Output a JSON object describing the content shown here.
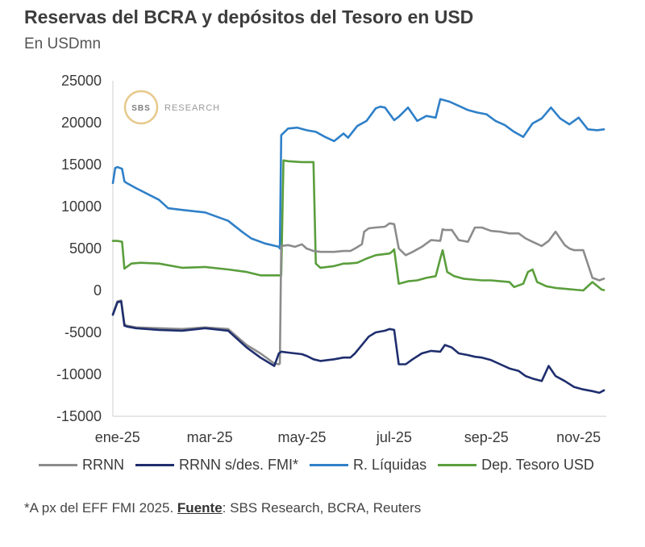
{
  "header": {
    "title": "Reservas del BCRA y depósitos del Tesoro en USD",
    "subtitle": "En USDmn"
  },
  "watermark": {
    "logo_text": "SBS",
    "text": "RESEARCH"
  },
  "footnote": {
    "prefix": "*A px del EFF FMI 2025. ",
    "source_label": "Fuente",
    "source_text": ": SBS Research, BCRA, Reuters"
  },
  "chart_data": {
    "type": "line",
    "title": "Reservas del BCRA y depósitos del Tesoro en USD",
    "ylabel": "En USDmn",
    "xlabel": "",
    "ylim": [
      -15000,
      25000
    ],
    "yticks": [
      25000,
      20000,
      15000,
      10000,
      5000,
      0,
      -5000,
      -10000,
      -15000
    ],
    "ytick_labels": [
      "25000",
      "20000",
      "15000",
      "10000",
      "5000",
      "0",
      "-5000",
      "-10000",
      "-15000"
    ],
    "xlim": [
      0,
      10.7
    ],
    "xticks": [
      0.1,
      2.1,
      4.1,
      6.1,
      8.1,
      10.1
    ],
    "xtick_labels": [
      "ene-25",
      "mar-25",
      "may-25",
      "jul-25",
      "sep-25",
      "nov-25"
    ],
    "x_unit": "months since 2025-01-01",
    "grid": false,
    "legend_position": "bottom",
    "series": [
      {
        "name": "RRNN",
        "color": "#8c8c8c",
        "x": [
          0.0,
          0.1,
          0.18,
          0.25,
          0.3,
          0.5,
          1.0,
          1.5,
          2.0,
          2.5,
          2.9,
          3.2,
          3.5,
          3.6,
          3.62,
          3.65,
          3.8,
          3.95,
          4.1,
          4.2,
          4.35,
          4.5,
          4.8,
          5.0,
          5.15,
          5.25,
          5.4,
          5.45,
          5.55,
          5.7,
          5.9,
          6.0,
          6.1,
          6.2,
          6.35,
          6.5,
          6.7,
          6.9,
          7.1,
          7.15,
          7.2,
          7.35,
          7.5,
          7.7,
          7.85,
          8.0,
          8.2,
          8.4,
          8.6,
          8.8,
          8.95,
          9.1,
          9.3,
          9.45,
          9.6,
          9.8,
          9.9,
          10.0,
          10.2,
          10.4,
          10.55,
          10.65
        ],
        "y": [
          -2800,
          -1300,
          -1200,
          -4000,
          -4200,
          -4400,
          -4500,
          -4600,
          -4400,
          -4600,
          -6500,
          -7500,
          -8700,
          -8800,
          -8700,
          5300,
          5400,
          5200,
          5500,
          5000,
          4700,
          4600,
          4600,
          4700,
          4700,
          5000,
          5500,
          7000,
          7400,
          7500,
          7600,
          8000,
          7900,
          5000,
          4200,
          4600,
          5200,
          6000,
          5900,
          7300,
          7200,
          7200,
          6000,
          5800,
          7500,
          7500,
          7100,
          7000,
          6800,
          6800,
          6200,
          5800,
          5300,
          5900,
          7000,
          5400,
          5000,
          4800,
          4800,
          1500,
          1200,
          1400
        ]
      },
      {
        "name": "RRNN s/des. FMI*",
        "color": "#1f2e6e",
        "x": [
          0.0,
          0.1,
          0.18,
          0.25,
          0.3,
          0.5,
          1.0,
          1.5,
          2.0,
          2.5,
          2.9,
          3.2,
          3.5,
          3.6,
          3.65,
          3.8,
          3.95,
          4.1,
          4.2,
          4.35,
          4.5,
          4.8,
          5.0,
          5.15,
          5.25,
          5.4,
          5.55,
          5.7,
          5.9,
          6.0,
          6.1,
          6.2,
          6.35,
          6.5,
          6.7,
          6.9,
          7.1,
          7.2,
          7.35,
          7.5,
          7.7,
          7.85,
          8.0,
          8.2,
          8.4,
          8.6,
          8.8,
          8.95,
          9.1,
          9.3,
          9.45,
          9.6,
          9.8,
          10.0,
          10.2,
          10.4,
          10.55,
          10.65
        ],
        "y": [
          -2900,
          -1400,
          -1300,
          -4200,
          -4300,
          -4500,
          -4700,
          -4800,
          -4500,
          -4800,
          -6800,
          -8000,
          -9000,
          -7500,
          -7300,
          -7400,
          -7500,
          -7600,
          -7800,
          -8200,
          -8400,
          -8200,
          -8000,
          -8000,
          -7500,
          -6500,
          -5500,
          -5000,
          -4800,
          -4600,
          -4700,
          -8800,
          -8800,
          -8200,
          -7500,
          -7200,
          -7300,
          -6500,
          -6800,
          -7500,
          -7700,
          -7900,
          -8000,
          -8300,
          -8800,
          -9300,
          -9600,
          -10200,
          -10500,
          -10800,
          -9000,
          -10200,
          -10800,
          -11500,
          -11800,
          -12000,
          -12200,
          -11900
        ]
      },
      {
        "name": "R. Líquidas",
        "color": "#2f80c8",
        "x": [
          0.0,
          0.05,
          0.1,
          0.2,
          0.25,
          0.3,
          0.5,
          1.0,
          1.2,
          1.5,
          2.0,
          2.5,
          2.8,
          3.0,
          3.3,
          3.6,
          3.62,
          3.65,
          3.8,
          4.0,
          4.2,
          4.4,
          4.6,
          4.8,
          5.0,
          5.1,
          5.3,
          5.5,
          5.7,
          5.8,
          5.9,
          6.1,
          6.2,
          6.4,
          6.6,
          6.8,
          7.0,
          7.1,
          7.3,
          7.5,
          7.7,
          7.9,
          8.1,
          8.3,
          8.5,
          8.7,
          8.9,
          9.1,
          9.3,
          9.5,
          9.7,
          9.9,
          10.1,
          10.3,
          10.5,
          10.65
        ],
        "y": [
          12800,
          14600,
          14700,
          14500,
          13000,
          12800,
          12200,
          10800,
          9800,
          9600,
          9300,
          8300,
          7000,
          6200,
          5600,
          5200,
          5000,
          18500,
          19300,
          19400,
          19100,
          18900,
          18300,
          17800,
          18700,
          18200,
          19600,
          20200,
          21700,
          21900,
          21800,
          20300,
          20700,
          21800,
          20200,
          20800,
          20600,
          22800,
          22500,
          22000,
          21500,
          21200,
          21000,
          20200,
          19700,
          18900,
          18300,
          19900,
          20500,
          21800,
          20500,
          19800,
          20600,
          19200,
          19100,
          19200
        ]
      },
      {
        "name": "Dep. Tesoro USD",
        "color": "#5a9e3c",
        "x": [
          0.0,
          0.1,
          0.2,
          0.25,
          0.4,
          0.6,
          1.0,
          1.5,
          2.0,
          2.5,
          2.9,
          3.2,
          3.5,
          3.6,
          3.65,
          3.7,
          3.8,
          4.1,
          4.35,
          4.4,
          4.5,
          4.8,
          5.0,
          5.1,
          5.3,
          5.5,
          5.7,
          6.0,
          6.05,
          6.1,
          6.2,
          6.4,
          6.6,
          6.8,
          7.0,
          7.1,
          7.15,
          7.25,
          7.4,
          7.6,
          7.8,
          8.0,
          8.2,
          8.4,
          8.6,
          8.7,
          8.9,
          9.0,
          9.1,
          9.2,
          9.4,
          9.6,
          9.8,
          10.0,
          10.2,
          10.4,
          10.6,
          10.65
        ],
        "y": [
          5900,
          5900,
          5800,
          2600,
          3200,
          3300,
          3200,
          2700,
          2800,
          2500,
          2200,
          1800,
          1800,
          1800,
          1800,
          15500,
          15400,
          15300,
          15300,
          3200,
          2700,
          2900,
          3200,
          3200,
          3300,
          3800,
          4200,
          4400,
          4600,
          4900,
          800,
          1100,
          1200,
          1500,
          1700,
          3800,
          4800,
          2200,
          1700,
          1400,
          1300,
          1200,
          1200,
          1100,
          1000,
          400,
          800,
          2200,
          2500,
          1000,
          500,
          300,
          200,
          100,
          0,
          1000,
          100,
          50
        ]
      }
    ]
  }
}
